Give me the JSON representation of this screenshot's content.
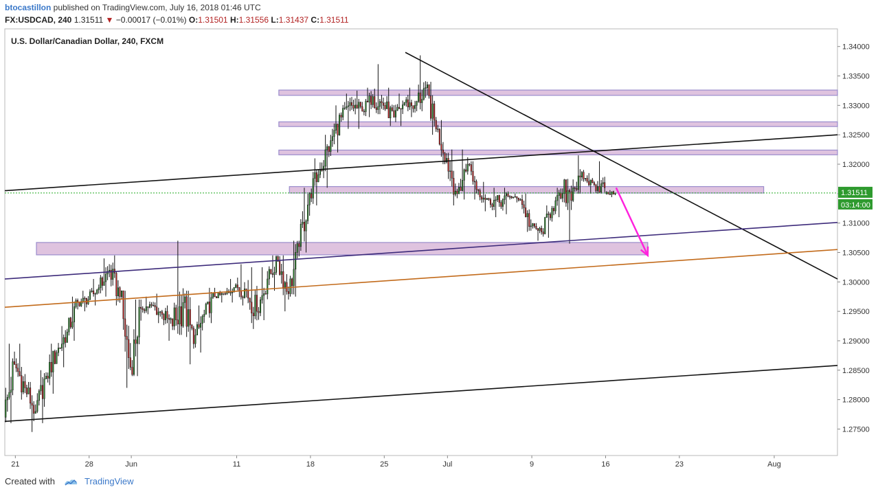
{
  "header": {
    "author": "btocastillon",
    "published_text": " published on TradingView.com, July 16, 2018 01:46 UTC",
    "symbol": "FX:USDCAD, 240",
    "last": "1.31511",
    "change": "−0.00017 (−0.01%)",
    "o_label": "O:",
    "o": "1.31501",
    "h_label": "H:",
    "h": "1.31556",
    "l_label": "L:",
    "l": "1.31437",
    "c_label": "C:",
    "c": "1.31511"
  },
  "footer": {
    "created_with": "Created with",
    "brand": "TradingView"
  },
  "chart_data": {
    "type": "candlestick",
    "title": "U.S. Dollar/Canadian Dollar, 240, FXCM",
    "y_ticks": [
      "1.27500",
      "1.28000",
      "1.28500",
      "1.29000",
      "1.29500",
      "1.30000",
      "1.30500",
      "1.31000",
      "1.31500",
      "1.32000",
      "1.32500",
      "1.33000",
      "1.33500",
      "1.34000"
    ],
    "x_ticks": [
      "21",
      "28",
      "Jun",
      "11",
      "18",
      "25",
      "Jul",
      "9",
      "16",
      "23",
      "Aug"
    ],
    "ylim": [
      1.2705,
      1.343
    ],
    "xlim": [
      "2018-05-20",
      "2018-08-07"
    ],
    "last_price_label": "1.31511",
    "countdown_label": "03:14:00",
    "candle_color_up": "#2e8b2e",
    "candle_color_down": "#c82828",
    "daily_ohlc": [
      [
        "2018-05-20",
        1.277,
        1.2895,
        1.276,
        1.286
      ],
      [
        "2018-05-21",
        1.286,
        1.2895,
        1.28,
        1.282
      ],
      [
        "2018-05-22",
        1.282,
        1.283,
        1.2745,
        1.278
      ],
      [
        "2018-05-23",
        1.278,
        1.285,
        1.276,
        1.284
      ],
      [
        "2018-05-24",
        1.284,
        1.2895,
        1.281,
        1.288
      ],
      [
        "2018-05-25",
        1.288,
        1.2925,
        1.2855,
        1.2915
      ],
      [
        "2018-05-26",
        1.2915,
        1.2975,
        1.29,
        1.2965
      ],
      [
        "2018-05-27",
        1.2965,
        1.2985,
        1.295,
        1.297
      ],
      [
        "2018-05-28",
        1.297,
        1.3005,
        1.296,
        1.299
      ],
      [
        "2018-05-29",
        1.299,
        1.304,
        1.2975,
        1.302
      ],
      [
        "2018-05-30",
        1.302,
        1.3045,
        1.296,
        1.2975
      ],
      [
        "2018-05-31",
        1.2975,
        1.2985,
        1.282,
        1.2855
      ],
      [
        "2018-06-01",
        1.2855,
        1.297,
        1.284,
        1.2955
      ],
      [
        "2018-06-02",
        1.2955,
        1.2975,
        1.2945,
        1.296
      ],
      [
        "2018-06-03",
        1.296,
        1.298,
        1.293,
        1.2945
      ],
      [
        "2018-06-04",
        1.2945,
        1.296,
        1.29,
        1.2925
      ],
      [
        "2018-06-05",
        1.2925,
        1.307,
        1.291,
        1.2965
      ],
      [
        "2018-06-06",
        1.2965,
        1.2985,
        1.286,
        1.2895
      ],
      [
        "2018-06-07",
        1.2895,
        1.296,
        1.288,
        1.2945
      ],
      [
        "2018-06-08",
        1.2945,
        1.299,
        1.293,
        1.2975
      ],
      [
        "2018-06-09",
        1.2975,
        1.2985,
        1.2965,
        1.298
      ],
      [
        "2018-06-10",
        1.298,
        1.3005,
        1.2965,
        1.2995
      ],
      [
        "2018-06-11",
        1.2995,
        1.303,
        1.296,
        1.2985
      ],
      [
        "2018-06-12",
        1.2985,
        1.3025,
        1.292,
        1.295
      ],
      [
        "2018-06-13",
        1.295,
        1.3025,
        1.2935,
        1.3005
      ],
      [
        "2018-06-14",
        1.3005,
        1.3045,
        1.2985,
        1.3035
      ],
      [
        "2018-06-15",
        1.3035,
        1.3045,
        1.295,
        1.298
      ],
      [
        "2018-06-16",
        1.298,
        1.307,
        1.2975,
        1.306
      ],
      [
        "2018-06-17",
        1.306,
        1.316,
        1.305,
        1.315
      ],
      [
        "2018-06-18",
        1.315,
        1.321,
        1.313,
        1.319
      ],
      [
        "2018-06-19",
        1.319,
        1.325,
        1.316,
        1.324
      ],
      [
        "2018-06-20",
        1.324,
        1.33,
        1.322,
        1.328
      ],
      [
        "2018-06-21",
        1.328,
        1.332,
        1.326,
        1.33
      ],
      [
        "2018-06-22",
        1.33,
        1.3325,
        1.326,
        1.329
      ],
      [
        "2018-06-23",
        1.329,
        1.333,
        1.328,
        1.3315
      ],
      [
        "2018-06-24",
        1.3315,
        1.337,
        1.3285,
        1.33
      ],
      [
        "2018-06-25",
        1.33,
        1.333,
        1.3265,
        1.328
      ],
      [
        "2018-06-26",
        1.328,
        1.332,
        1.3265,
        1.3305
      ],
      [
        "2018-06-27",
        1.3305,
        1.333,
        1.328,
        1.33
      ],
      [
        "2018-06-28",
        1.33,
        1.3385,
        1.329,
        1.333
      ],
      [
        "2018-06-29",
        1.333,
        1.334,
        1.325,
        1.326
      ],
      [
        "2018-06-30",
        1.326,
        1.3275,
        1.32,
        1.321
      ],
      [
        "2018-07-01",
        1.321,
        1.3225,
        1.313,
        1.315
      ],
      [
        "2018-07-02",
        1.315,
        1.3225,
        1.314,
        1.32
      ],
      [
        "2018-07-03",
        1.32,
        1.3205,
        1.314,
        1.3155
      ],
      [
        "2018-07-04",
        1.3155,
        1.317,
        1.312,
        1.314
      ],
      [
        "2018-07-05",
        1.314,
        1.316,
        1.311,
        1.3135
      ],
      [
        "2018-07-06",
        1.3135,
        1.316,
        1.3115,
        1.3145
      ],
      [
        "2018-07-07",
        1.3145,
        1.315,
        1.3135,
        1.314
      ],
      [
        "2018-07-08",
        1.314,
        1.315,
        1.3085,
        1.3095
      ],
      [
        "2018-07-09",
        1.3095,
        1.31,
        1.307,
        1.3085
      ],
      [
        "2018-07-10",
        1.3085,
        1.313,
        1.3075,
        1.3125
      ],
      [
        "2018-07-11",
        1.3125,
        1.316,
        1.311,
        1.315
      ],
      [
        "2018-07-12",
        1.315,
        1.3175,
        1.3065,
        1.316
      ],
      [
        "2018-07-13",
        1.316,
        1.3215,
        1.315,
        1.3175
      ],
      [
        "2018-07-14",
        1.3175,
        1.3185,
        1.315,
        1.3165
      ],
      [
        "2018-07-15",
        1.3165,
        1.3205,
        1.315,
        1.316
      ],
      [
        "2018-07-16",
        1.315,
        1.3156,
        1.3144,
        1.3151
      ]
    ],
    "trend_lines": [
      {
        "name": "upper-channel-line",
        "color": "#111111",
        "p1": [
          "2018-05-20",
          1.3155
        ],
        "p2": [
          "2018-08-07",
          1.325
        ]
      },
      {
        "name": "lower-channel-line",
        "color": "#111111",
        "p1": [
          "2018-05-20",
          1.2763
        ],
        "p2": [
          "2018-08-07",
          1.2858
        ]
      },
      {
        "name": "descending-trendline",
        "color": "#111111",
        "p1": [
          "2018-06-27",
          1.339
        ],
        "p2": [
          "2018-08-07",
          1.3005
        ]
      },
      {
        "name": "purple-trendline",
        "color": "#3c2a7a",
        "p1": [
          "2018-05-20",
          1.3005
        ],
        "p2": [
          "2018-08-07",
          1.3101
        ]
      },
      {
        "name": "orange-trendline",
        "color": "#c26a1a",
        "p1": [
          "2018-05-20",
          1.2957
        ],
        "p2": [
          "2018-08-07",
          1.3055
        ]
      }
    ],
    "zones": [
      {
        "name": "resistance-zone-1",
        "x1": "2018-06-15",
        "x2": "2018-08-07",
        "y1": 1.3317,
        "y2": 1.3326
      },
      {
        "name": "resistance-zone-2",
        "x1": "2018-06-15",
        "x2": "2018-08-07",
        "y1": 1.3264,
        "y2": 1.3272
      },
      {
        "name": "resistance-zone-3",
        "x1": "2018-06-15",
        "x2": "2018-08-07",
        "y1": 1.3216,
        "y2": 1.3224
      },
      {
        "name": "current-price-zone",
        "x1": "2018-06-16",
        "x2": "2018-07-31",
        "y1": 1.3151,
        "y2": 1.3162
      },
      {
        "name": "support-zone",
        "x1": "2018-05-23",
        "x2": "2018-07-20",
        "y1": 1.3046,
        "y2": 1.3067
      }
    ],
    "zone_fill": "#d9b8d9",
    "zone_stroke": "#9a8ccc",
    "projection_arrow": {
      "color": "#ff22dd",
      "from": [
        "2018-07-17",
        1.316
      ],
      "to": [
        "2018-07-20",
        1.3045
      ]
    },
    "last_price_line_color": "#22aa22"
  }
}
